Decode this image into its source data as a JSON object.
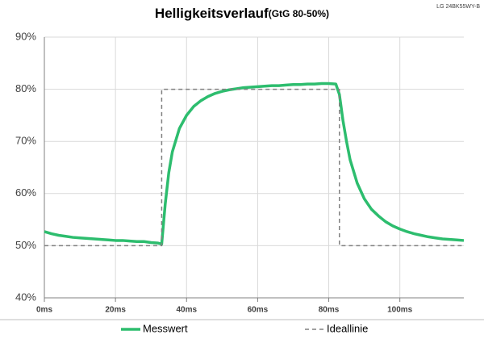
{
  "chart_data": {
    "type": "line",
    "title": "Helligkeitsverlauf",
    "subtitle": "(GtG 80-50%)",
    "annotation": "LG 24BK55WY-B",
    "series": [
      {
        "name": "Messwert",
        "color": "#2dbd6e",
        "dash": false,
        "x": [
          0,
          2,
          4,
          6,
          8,
          10,
          12,
          14,
          16,
          18,
          20,
          22,
          24,
          26,
          28,
          30,
          32,
          33,
          34,
          35,
          36,
          38,
          40,
          42,
          44,
          46,
          48,
          50,
          52,
          54,
          56,
          58,
          60,
          62,
          64,
          66,
          68,
          70,
          72,
          74,
          76,
          78,
          80,
          82,
          83,
          84,
          85,
          86,
          88,
          90,
          92,
          94,
          96,
          98,
          100,
          102,
          104,
          106,
          108,
          110,
          112,
          114,
          116,
          118
        ],
        "values": [
          52.7,
          52.3,
          52.0,
          51.8,
          51.6,
          51.5,
          51.4,
          51.3,
          51.2,
          51.1,
          51.0,
          51.0,
          50.9,
          50.8,
          50.8,
          50.6,
          50.5,
          50.3,
          58,
          64,
          68,
          72.5,
          75,
          76.7,
          77.8,
          78.6,
          79.2,
          79.6,
          79.9,
          80.1,
          80.3,
          80.4,
          80.5,
          80.6,
          80.7,
          80.7,
          80.8,
          80.9,
          80.9,
          81.0,
          81.0,
          81.1,
          81.1,
          81.0,
          79,
          74,
          70,
          66.5,
          62,
          59,
          57,
          55.7,
          54.6,
          53.8,
          53.2,
          52.7,
          52.3,
          52.0,
          51.7,
          51.5,
          51.3,
          51.2,
          51.1,
          51.0
        ]
      },
      {
        "name": "Ideallinie",
        "color": "#808080",
        "dash": true,
        "x": [
          0,
          33,
          33,
          83,
          83,
          118
        ],
        "values": [
          50,
          50,
          80,
          80,
          50,
          50
        ]
      }
    ],
    "xlim": [
      0,
      118
    ],
    "xticks": [
      {
        "value": 0,
        "label": "0ms"
      },
      {
        "value": 20,
        "label": "20ms"
      },
      {
        "value": 40,
        "label": "40ms"
      },
      {
        "value": 60,
        "label": "60ms"
      },
      {
        "value": 80,
        "label": "80ms"
      },
      {
        "value": 100,
        "label": "100ms"
      }
    ],
    "ylim": [
      40,
      90
    ],
    "yticks": [
      {
        "value": 40,
        "label": "40%"
      },
      {
        "value": 50,
        "label": "50%"
      },
      {
        "value": 60,
        "label": "60%"
      },
      {
        "value": 70,
        "label": "70%"
      },
      {
        "value": 80,
        "label": "80%"
      },
      {
        "value": 90,
        "label": "90%"
      }
    ],
    "grid": true,
    "legend": "bottom"
  }
}
